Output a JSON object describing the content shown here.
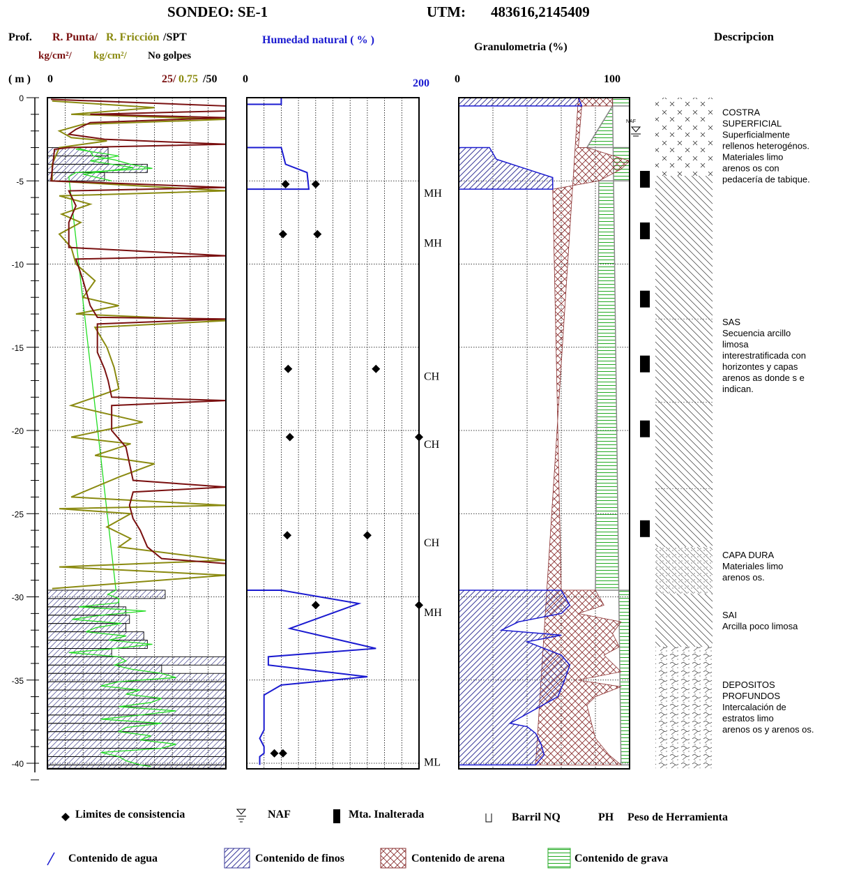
{
  "header": {
    "sondeo": "SONDEO: SE-1",
    "utm_label": "UTM:",
    "utm_value": "483616,2145409"
  },
  "panel_cpt": {
    "prof_label": "Prof.",
    "m_label": "( m )",
    "title_punta": "R. Punta/",
    "title_friccion": "R. Fricción",
    "title_spt": " /SPT",
    "units_punta": "kg/cm²/",
    "units_friccion": "kg/cm²/",
    "units_spt": "No golpes",
    "scale_zero": "0",
    "scale_punta": "25/",
    "scale_friccion": "0.75",
    "scale_spt": "/50"
  },
  "panel_humedad": {
    "title": "Humedad natural ( % )",
    "scale_min": "0",
    "scale_max": "200",
    "classes": [
      "MH",
      "MH",
      "CH",
      "CH",
      "CH",
      "MH",
      "ML"
    ]
  },
  "panel_granulometria": {
    "title": "Granulometria (%)",
    "scale_min": "0",
    "scale_max": "100"
  },
  "panel_descripcion": {
    "title": "Descripcion",
    "naf_label": "NAF",
    "units": [
      {
        "lines": [
          "COSTRA",
          "SUPERFICIAL",
          "Superficialmente",
          "rellenos heterogénos.",
          "Materiales limo",
          "arenos os con",
          "pedacería de tabique."
        ]
      },
      {
        "lines": [
          "SAS",
          "Secuencia arcillo",
          "limosa",
          "interestratificada con",
          "horizontes y capas",
          "arenos as donde s e",
          "indican."
        ]
      },
      {
        "lines": [
          "CAPA DURA",
          "Materiales limo",
          "arenos os."
        ]
      },
      {
        "lines": [
          "SAI",
          "Arcilla poco limosa"
        ]
      },
      {
        "lines": [
          "DEPOSITOS",
          "PROFUNDOS",
          "Intercalación de",
          "estratos limo",
          "arenos os y arenos os."
        ]
      }
    ]
  },
  "legend": {
    "limites": "Limites de consistencia",
    "naf": "NAF",
    "mta": "Mta. Inalterada",
    "barril": "Barril NQ",
    "ph_code": "PH",
    "ph": "Peso de Herramienta",
    "agua": "Contenido de agua",
    "finos": "Contenido de finos",
    "arena": "Contenido de arena",
    "grava": "Contenido de grava"
  },
  "colors": {
    "punta": "#7a1010",
    "friccion": "#8a8a10",
    "spt_line": "#22dd22",
    "humedad": "#1a1ad0",
    "finos": "#3a3a9a",
    "arena": "#8a3030",
    "grava": "#22aa22"
  },
  "chart_data": {
    "type": "line",
    "depth_axis": {
      "label": "( m )",
      "ylim": [
        0,
        -40
      ],
      "ticks": [
        0,
        -5,
        -10,
        -15,
        -20,
        -25,
        -30,
        -35,
        -40
      ]
    },
    "series": [
      {
        "name": "R. Punta",
        "units": "kg/cm²",
        "xlim": [
          0,
          25
        ],
        "points": [
          [
            0.5,
            -0.1
          ],
          [
            25,
            -0.5
          ],
          [
            25,
            -0.8
          ],
          [
            6,
            -1.0
          ],
          [
            25,
            -1.2
          ],
          [
            6,
            -1.5
          ],
          [
            4,
            -1.9
          ],
          [
            3,
            -2.2
          ],
          [
            8,
            -2.5
          ],
          [
            25,
            -2.8
          ],
          [
            3,
            -3.0
          ],
          [
            1,
            -3.1
          ],
          [
            0.5,
            -5.0
          ],
          [
            25,
            -5.4
          ],
          [
            3,
            -5.6
          ],
          [
            4,
            -6.5
          ],
          [
            3,
            -7.5
          ],
          [
            3,
            -9
          ],
          [
            25,
            -9.5
          ],
          [
            4,
            -9.7
          ],
          [
            5,
            -11
          ],
          [
            6,
            -12.5
          ],
          [
            7,
            -13.2
          ],
          [
            25,
            -13.3
          ],
          [
            7,
            -13.6
          ],
          [
            7,
            -15.3
          ],
          [
            8,
            -16.3
          ],
          [
            8.5,
            -17
          ],
          [
            9,
            -18
          ],
          [
            25,
            -18.2
          ],
          [
            9,
            -18.5
          ],
          [
            9,
            -20
          ],
          [
            11,
            -21
          ],
          [
            11.5,
            -22
          ],
          [
            12,
            -23
          ],
          [
            25,
            -23.4
          ],
          [
            12,
            -23.7
          ],
          [
            11.5,
            -24.5
          ],
          [
            12,
            -25.3
          ],
          [
            13,
            -26
          ],
          [
            14,
            -27
          ],
          [
            16,
            -27.7
          ],
          [
            25,
            -28
          ],
          [
            25,
            -29.5
          ]
        ]
      },
      {
        "name": "R. Fricción",
        "units": "kg/cm²",
        "xlim": [
          0,
          0.75
        ],
        "points": [
          [
            0.02,
            -0.2
          ],
          [
            0.45,
            -0.6
          ],
          [
            0.1,
            -1.0
          ],
          [
            0.75,
            -1.3
          ],
          [
            0.15,
            -1.6
          ],
          [
            0.05,
            -2.0
          ],
          [
            0.1,
            -2.4
          ],
          [
            0.25,
            -2.6
          ],
          [
            0.05,
            -3.0
          ],
          [
            0.02,
            -4.0
          ],
          [
            0.02,
            -5.0
          ],
          [
            0.75,
            -5.6
          ],
          [
            0.05,
            -5.9
          ],
          [
            0.18,
            -6.4
          ],
          [
            0.06,
            -7.0
          ],
          [
            0.14,
            -7.5
          ],
          [
            0.05,
            -8.2
          ],
          [
            0.1,
            -9.0
          ],
          [
            0.12,
            -10
          ],
          [
            0.2,
            -11
          ],
          [
            0.15,
            -12
          ],
          [
            0.3,
            -12.5
          ],
          [
            0.12,
            -13.0
          ],
          [
            0.75,
            -13.4
          ],
          [
            0.2,
            -13.8
          ],
          [
            0.25,
            -15
          ],
          [
            0.28,
            -16.2
          ],
          [
            0.3,
            -17.5
          ],
          [
            0.1,
            -18.5
          ],
          [
            0.4,
            -19.5
          ],
          [
            0.1,
            -20.4
          ],
          [
            0.35,
            -20.8
          ],
          [
            0.2,
            -21.5
          ],
          [
            0.45,
            -22
          ],
          [
            0.3,
            -22.8
          ],
          [
            0.1,
            -24
          ],
          [
            0.75,
            -24.5
          ],
          [
            0.05,
            -24.7
          ],
          [
            0.35,
            -25
          ],
          [
            0.25,
            -25.8
          ],
          [
            0.35,
            -26.5
          ],
          [
            0.3,
            -27
          ],
          [
            0.75,
            -27.8
          ],
          [
            0.05,
            -28.2
          ],
          [
            0.75,
            -28.7
          ],
          [
            0.02,
            -29.5
          ]
        ]
      },
      {
        "name": "SPT",
        "units": "No golpes",
        "xlim": [
          0,
          50
        ],
        "intervals": [
          [
            -3.0,
            -3.5,
            17
          ],
          [
            -3.5,
            -4.0,
            17
          ],
          [
            -4.0,
            -4.5,
            28
          ],
          [
            -4.5,
            -5.0,
            16
          ],
          [
            -29.6,
            -30.1,
            33
          ],
          [
            -30.1,
            -30.6,
            20
          ],
          [
            -30.6,
            -31.1,
            22
          ],
          [
            -31.1,
            -31.6,
            23
          ],
          [
            -31.6,
            -32.1,
            22
          ],
          [
            -32.1,
            -32.6,
            27
          ],
          [
            -32.6,
            -33.1,
            28
          ],
          [
            -33.1,
            -33.6,
            18
          ],
          [
            -33.6,
            -34.1,
            50
          ],
          [
            -34.1,
            -34.6,
            32
          ],
          [
            -34.6,
            -35.1,
            50
          ],
          [
            -35.1,
            -35.6,
            50
          ],
          [
            -35.6,
            -36.1,
            50
          ],
          [
            -36.1,
            -36.6,
            50
          ],
          [
            -36.6,
            -37.1,
            50
          ],
          [
            -37.1,
            -37.6,
            50
          ],
          [
            -37.6,
            -38.1,
            50
          ],
          [
            -38.1,
            -38.6,
            50
          ],
          [
            -38.6,
            -39.1,
            50
          ],
          [
            -39.1,
            -39.6,
            50
          ],
          [
            -39.6,
            -40.1,
            50
          ],
          [
            -40.1,
            -40.3,
            50
          ]
        ]
      },
      {
        "name": "Humedad natural",
        "units": "%",
        "xlim": [
          0,
          200
        ],
        "points": [
          [
            40,
            0
          ],
          [
            40,
            -0.4
          ],
          [
            0,
            -0.4
          ],
          [
            0,
            -3.0
          ],
          [
            40,
            -3.0
          ],
          [
            45,
            -4.0
          ],
          [
            70,
            -4.5
          ],
          [
            72,
            -5.5
          ],
          [
            0,
            -5.5
          ],
          [
            0,
            -29.6
          ],
          [
            40,
            -29.6
          ],
          [
            130,
            -30.4
          ],
          [
            50,
            -31.9
          ],
          [
            150,
            -33.1
          ],
          [
            25,
            -33.6
          ],
          [
            25,
            -34.1
          ],
          [
            140,
            -34.8
          ],
          [
            40,
            -35.3
          ],
          [
            20,
            -35.9
          ],
          [
            20,
            -38
          ],
          [
            15,
            -38.5
          ],
          [
            20,
            -39
          ],
          [
            20,
            -39.4
          ],
          [
            15,
            -39.6
          ],
          [
            15,
            -40.1
          ]
        ]
      },
      {
        "name": "Limites de consistencia",
        "units": "%",
        "pairs": [
          [
            -5.2,
            45,
            80
          ],
          [
            -8.2,
            42,
            82
          ],
          [
            -16.3,
            48,
            150
          ],
          [
            -20.4,
            50,
            200
          ],
          [
            -26.3,
            47,
            140
          ],
          [
            -30.5,
            80,
            200
          ],
          [
            -39.4,
            32,
            42
          ]
        ]
      },
      {
        "name": "Contenido de finos",
        "units": "%",
        "xlim": [
          0,
          100
        ],
        "points": [
          [
            0,
            0
          ],
          [
            70,
            0
          ],
          [
            72,
            -0.5
          ],
          [
            0,
            -0.5
          ],
          [
            0,
            -3.0
          ],
          [
            18,
            -3.0
          ],
          [
            22,
            -3.7
          ],
          [
            40,
            -4.3
          ],
          [
            55,
            -4.8
          ],
          [
            55,
            -5.5
          ],
          [
            0,
            -5.5
          ],
          [
            0,
            -29.6
          ],
          [
            60,
            -29.6
          ],
          [
            65,
            -30.5
          ],
          [
            60,
            -31.0
          ],
          [
            35,
            -31.5
          ],
          [
            25,
            -32
          ],
          [
            60,
            -32.3
          ],
          [
            40,
            -32.7
          ],
          [
            60,
            -33.5
          ],
          [
            65,
            -34.1
          ],
          [
            62,
            -35
          ],
          [
            58,
            -36
          ],
          [
            30,
            -37.6
          ],
          [
            40,
            -37.8
          ],
          [
            45,
            -38.2
          ],
          [
            48,
            -38.8
          ],
          [
            50,
            -39.5
          ],
          [
            45,
            -40.1
          ],
          [
            0,
            -40.1
          ]
        ]
      },
      {
        "name": "Contenido de arena",
        "units": "%",
        "xlim": [
          0,
          100
        ],
        "points": [
          [
            70,
            0
          ],
          [
            90,
            0
          ],
          [
            90,
            -0.5
          ],
          [
            72,
            -0.5
          ],
          [
            70,
            -3.0
          ],
          [
            75,
            -3.0
          ],
          [
            100,
            -3.8
          ],
          [
            95,
            -4.3
          ],
          [
            82,
            -5.0
          ],
          [
            55,
            -5.5
          ],
          [
            60,
            -29.6
          ],
          [
            80,
            -29.6
          ],
          [
            85,
            -30.5
          ],
          [
            70,
            -31.0
          ],
          [
            95,
            -31.5
          ],
          [
            90,
            -32.2
          ],
          [
            94,
            -33.0
          ],
          [
            85,
            -33.5
          ],
          [
            95,
            -34.5
          ],
          [
            70,
            -35
          ],
          [
            95,
            -35.4
          ],
          [
            80,
            -36.0
          ],
          [
            75,
            -36.5
          ],
          [
            80,
            -38.5
          ],
          [
            88,
            -39.5
          ],
          [
            95,
            -40.1
          ],
          [
            45,
            -40.1
          ]
        ]
      },
      {
        "name": "Contenido de grava",
        "units": "%",
        "xlim": [
          0,
          100
        ],
        "points": [
          [
            90,
            0
          ],
          [
            100,
            0
          ],
          [
            100,
            -0.5
          ],
          [
            90,
            -0.5
          ],
          [
            75,
            -3.0
          ],
          [
            100,
            -3.0
          ],
          [
            100,
            -5.0
          ],
          [
            82,
            -5.0
          ],
          [
            80,
            -29.6
          ],
          [
            100,
            -29.6
          ],
          [
            100,
            -40.1
          ],
          [
            95,
            -40.1
          ]
        ]
      },
      {
        "name": "Mta. Inalterada",
        "depths": [
          -4.4,
          -7.5,
          -11.6,
          -15.5,
          -19.4,
          -25.4
        ]
      }
    ]
  }
}
